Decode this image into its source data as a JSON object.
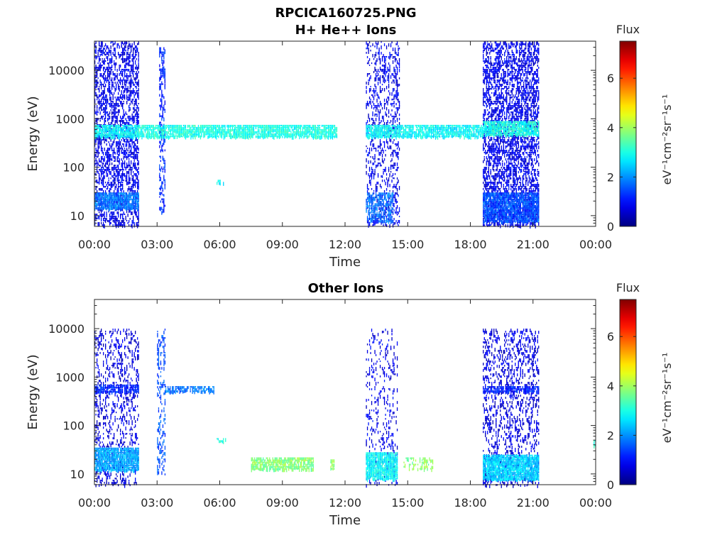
{
  "figure": {
    "title_line1": "RPCICA160725.PNG",
    "title_line2": "H+ He++ Ions"
  },
  "chart_data": [
    {
      "type": "heatmap",
      "title": "H+ He++ Ions",
      "xlabel": "Time",
      "ylabel": "Energy (eV)",
      "x_ticks": [
        "00:00",
        "03:00",
        "06:00",
        "09:00",
        "12:00",
        "15:00",
        "18:00",
        "21:00",
        "00:00"
      ],
      "x_range_hours": [
        0,
        24
      ],
      "y_scale": "log",
      "y_ticks": [
        "10",
        "100",
        "1000",
        "10000"
      ],
      "y_range": [
        6,
        40000
      ],
      "colorbar": {
        "label": "Flux",
        "unit": "eV⁻¹cm⁻²sr⁻¹s⁻¹",
        "ticks": [
          "0",
          "2",
          "4",
          "6"
        ],
        "range": [
          0,
          7.5
        ],
        "colormap": "jet"
      },
      "regions": [
        {
          "t0": 0.0,
          "t1": 2.1,
          "e0": 6,
          "e1": 40000,
          "level": 0.8,
          "density": 0.45
        },
        {
          "t0": 0.0,
          "t1": 2.1,
          "e0": 14,
          "e1": 30,
          "level": 1.8,
          "density": 0.9
        },
        {
          "t0": 0.0,
          "t1": 2.1,
          "e0": 450,
          "e1": 750,
          "level": 2.8,
          "density": 0.9
        },
        {
          "t0": 3.1,
          "t1": 3.4,
          "e0": 12,
          "e1": 30000,
          "level": 1.2,
          "density": 0.4
        },
        {
          "t0": 2.1,
          "t1": 11.6,
          "e0": 450,
          "e1": 750,
          "level": 3.0,
          "density": 0.85
        },
        {
          "t0": 13.0,
          "t1": 14.6,
          "e0": 6,
          "e1": 40000,
          "level": 0.8,
          "density": 0.25
        },
        {
          "t0": 13.0,
          "t1": 14.3,
          "e0": 8,
          "e1": 30,
          "level": 1.8,
          "density": 0.6
        },
        {
          "t0": 13.0,
          "t1": 18.6,
          "e0": 450,
          "e1": 750,
          "level": 2.8,
          "density": 0.85
        },
        {
          "t0": 18.6,
          "t1": 21.3,
          "e0": 6,
          "e1": 40000,
          "level": 0.8,
          "density": 0.5
        },
        {
          "t0": 18.6,
          "t1": 21.3,
          "e0": 8,
          "e1": 30,
          "level": 1.5,
          "density": 0.9
        },
        {
          "t0": 18.6,
          "t1": 21.3,
          "e0": 450,
          "e1": 900,
          "level": 3.0,
          "density": 0.9
        },
        {
          "t0": 5.8,
          "t1": 6.2,
          "e0": 45,
          "e1": 55,
          "level": 2.8,
          "density": 0.5
        }
      ]
    },
    {
      "type": "heatmap",
      "title": "Other Ions",
      "xlabel": "Time",
      "ylabel": "Energy (eV)",
      "x_ticks": [
        "00:00",
        "03:00",
        "06:00",
        "09:00",
        "12:00",
        "15:00",
        "18:00",
        "21:00",
        "00:00"
      ],
      "x_range_hours": [
        0,
        24
      ],
      "y_scale": "log",
      "y_ticks": [
        "10",
        "100",
        "1000",
        "10000"
      ],
      "y_range": [
        6,
        40000
      ],
      "colorbar": {
        "label": "Flux",
        "unit": "eV⁻¹cm⁻²sr⁻¹s⁻¹",
        "ticks": [
          "0",
          "2",
          "4",
          "6"
        ],
        "range": [
          0,
          7.5
        ],
        "colormap": "jet"
      },
      "regions": [
        {
          "t0": 0.0,
          "t1": 2.1,
          "e0": 6,
          "e1": 10000,
          "level": 0.7,
          "density": 0.22
        },
        {
          "t0": 0.0,
          "t1": 2.1,
          "e0": 500,
          "e1": 700,
          "level": 1.2,
          "density": 0.8
        },
        {
          "t0": 0.0,
          "t1": 2.1,
          "e0": 12,
          "e1": 35,
          "level": 2.2,
          "density": 0.95
        },
        {
          "t0": 3.0,
          "t1": 3.4,
          "e0": 10,
          "e1": 10000,
          "level": 1.5,
          "density": 0.3
        },
        {
          "t0": 3.4,
          "t1": 5.7,
          "e0": 520,
          "e1": 650,
          "level": 1.8,
          "density": 0.8
        },
        {
          "t0": 5.8,
          "t1": 6.3,
          "e0": 45,
          "e1": 55,
          "level": 3.0,
          "density": 0.5
        },
        {
          "t0": 7.5,
          "t1": 10.5,
          "e0": 13,
          "e1": 22,
          "level": 3.8,
          "density": 0.8
        },
        {
          "t0": 11.3,
          "t1": 11.5,
          "e0": 13,
          "e1": 20,
          "level": 3.8,
          "density": 0.7
        },
        {
          "t0": 13.0,
          "t1": 14.5,
          "e0": 6,
          "e1": 10000,
          "level": 0.8,
          "density": 0.15
        },
        {
          "t0": 13.0,
          "t1": 14.5,
          "e0": 8,
          "e1": 28,
          "level": 2.8,
          "density": 0.9
        },
        {
          "t0": 14.8,
          "t1": 16.2,
          "e0": 13,
          "e1": 22,
          "level": 3.8,
          "density": 0.4
        },
        {
          "t0": 18.6,
          "t1": 21.3,
          "e0": 6,
          "e1": 10000,
          "level": 0.7,
          "density": 0.25
        },
        {
          "t0": 18.6,
          "t1": 21.3,
          "e0": 480,
          "e1": 650,
          "level": 1.2,
          "density": 0.85
        },
        {
          "t0": 18.6,
          "t1": 21.3,
          "e0": 8,
          "e1": 25,
          "level": 2.5,
          "density": 0.95
        },
        {
          "t0": 23.9,
          "t1": 24.0,
          "e0": 40,
          "e1": 50,
          "level": 3.0,
          "density": 0.8
        }
      ]
    }
  ]
}
